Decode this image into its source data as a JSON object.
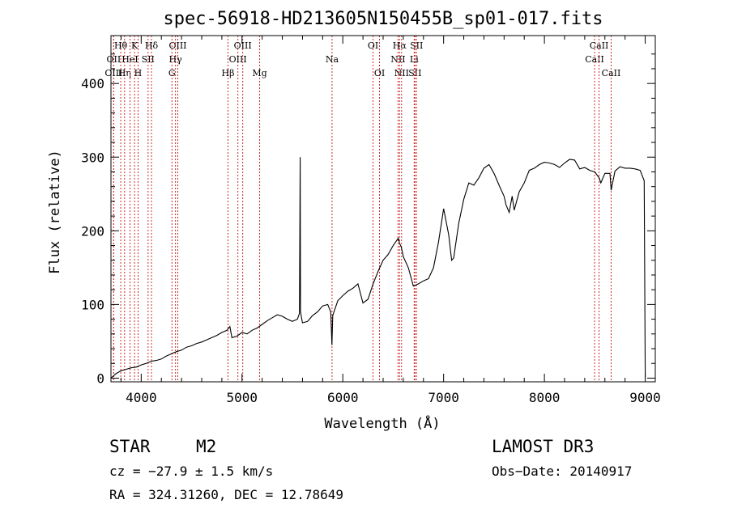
{
  "chart_data": {
    "type": "line",
    "title": "spec-56918-HD213605N150455B_sp01-017.fits",
    "xlabel": "Wavelength (Å)",
    "ylabel": "Flux (relative)",
    "xlim": [
      3700,
      9100
    ],
    "ylim": [
      -5,
      465
    ],
    "xticks": [
      4000,
      5000,
      6000,
      7000,
      8000,
      9000
    ],
    "yticks": [
      0,
      100,
      200,
      300,
      400
    ],
    "x": [
      3700,
      3750,
      3800,
      3850,
      3900,
      3950,
      4000,
      4050,
      4100,
      4150,
      4200,
      4250,
      4300,
      4350,
      4400,
      4450,
      4500,
      4550,
      4600,
      4650,
      4700,
      4750,
      4800,
      4850,
      4880,
      4900,
      4950,
      5000,
      5050,
      5100,
      5150,
      5200,
      5250,
      5300,
      5350,
      5400,
      5450,
      5500,
      5550,
      5570,
      5577,
      5580,
      5600,
      5650,
      5700,
      5750,
      5800,
      5850,
      5880,
      5892,
      5900,
      5950,
      6000,
      6050,
      6100,
      6150,
      6200,
      6250,
      6300,
      6350,
      6400,
      6450,
      6500,
      6550,
      6563,
      6580,
      6600,
      6650,
      6700,
      6750,
      6800,
      6850,
      6900,
      6950,
      7000,
      7050,
      7080,
      7100,
      7150,
      7200,
      7250,
      7300,
      7350,
      7400,
      7450,
      7500,
      7550,
      7600,
      7620,
      7650,
      7680,
      7700,
      7750,
      7800,
      7850,
      7900,
      7950,
      8000,
      8050,
      8100,
      8150,
      8200,
      8250,
      8300,
      8350,
      8400,
      8450,
      8500,
      8542,
      8560,
      8600,
      8650,
      8662,
      8700,
      8750,
      8800,
      8850,
      8900,
      8950,
      8990,
      9000
    ],
    "y": [
      0,
      6,
      10,
      12,
      14,
      15,
      18,
      20,
      23,
      24,
      26,
      30,
      33,
      36,
      38,
      42,
      44,
      47,
      49,
      52,
      55,
      58,
      62,
      65,
      70,
      55,
      57,
      62,
      60,
      65,
      68,
      73,
      78,
      82,
      86,
      84,
      80,
      77,
      80,
      88,
      300,
      90,
      75,
      77,
      85,
      90,
      98,
      100,
      90,
      45,
      85,
      105,
      112,
      118,
      122,
      128,
      102,
      107,
      128,
      145,
      160,
      168,
      180,
      190,
      183,
      178,
      165,
      150,
      125,
      128,
      132,
      135,
      150,
      185,
      230,
      195,
      160,
      163,
      210,
      243,
      265,
      262,
      272,
      285,
      290,
      278,
      262,
      247,
      235,
      225,
      247,
      228,
      253,
      265,
      282,
      285,
      290,
      293,
      292,
      290,
      286,
      292,
      297,
      296,
      284,
      286,
      282,
      280,
      272,
      265,
      278,
      278,
      255,
      281,
      287,
      285,
      285,
      284,
      282,
      268,
      0
    ],
    "lines": [
      {
        "label": "Hθ",
        "wave": 3797,
        "row": 1
      },
      {
        "label": "OII",
        "wave": 3727,
        "row": 2
      },
      {
        "label": "OIII",
        "wave": 3727,
        "row": 3
      },
      {
        "label": "Hη",
        "wave": 3835,
        "row": 3
      },
      {
        "label": "K",
        "wave": 3934,
        "row": 1
      },
      {
        "label": "HeI",
        "wave": 3889,
        "row": 2
      },
      {
        "label": "H",
        "wave": 3969,
        "row": 3
      },
      {
        "label": "Hδ",
        "wave": 4102,
        "row": 1
      },
      {
        "label": "SII",
        "wave": 4068,
        "row": 2
      },
      {
        "label": "OIII",
        "wave": 4363,
        "row": 1
      },
      {
        "label": "Hγ",
        "wave": 4340,
        "row": 2
      },
      {
        "label": "G",
        "wave": 4305,
        "row": 3
      },
      {
        "label": "Hβ",
        "wave": 4861,
        "row": 3
      },
      {
        "label": "OIII",
        "wave": 4959,
        "row": 2
      },
      {
        "label": "OIII",
        "wave": 5007,
        "row": 1
      },
      {
        "label": "Mg",
        "wave": 5175,
        "row": 3
      },
      {
        "label": "Na",
        "wave": 5893,
        "row": 2
      },
      {
        "label": "OI",
        "wave": 6300,
        "row": 1
      },
      {
        "label": "OI",
        "wave": 6364,
        "row": 3
      },
      {
        "label": "NII",
        "wave": 6548,
        "row": 2
      },
      {
        "label": "Hα",
        "wave": 6563,
        "row": 1
      },
      {
        "label": "NII",
        "wave": 6583,
        "row": 3
      },
      {
        "label": "SII",
        "wave": 6716,
        "row": 3
      },
      {
        "label": "SII",
        "wave": 6731,
        "row": 1
      },
      {
        "label": "Li",
        "wave": 6708,
        "row": 2
      },
      {
        "label": "CaII",
        "wave": 8498,
        "row": 2
      },
      {
        "label": "CaII",
        "wave": 8542,
        "row": 1
      },
      {
        "label": "CaII",
        "wave": 8662,
        "row": 3
      }
    ]
  },
  "info": {
    "class": "STAR",
    "subclass": "M2",
    "survey": "LAMOST DR3",
    "cz": "cz = −27.9 ± 1.5 km/s",
    "obs_date": "Obs−Date: 20140917",
    "radec": "RA = 324.31260, DEC =  12.78649"
  }
}
